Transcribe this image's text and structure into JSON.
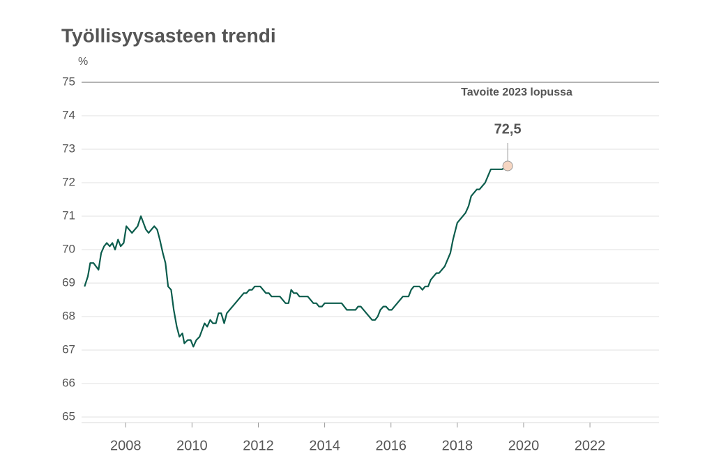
{
  "chart_data": {
    "type": "line",
    "title": "Työllisyysasteen trendi",
    "y_label": "%",
    "xlim": [
      2006.67,
      2024.08
    ],
    "xticks": [
      2008,
      2010,
      2012,
      2014,
      2016,
      2018,
      2020,
      2022
    ],
    "ylim": [
      65,
      75
    ],
    "yticks": [
      65,
      66,
      67,
      68,
      69,
      70,
      71,
      72,
      73,
      74,
      75
    ],
    "grid": true,
    "target": {
      "value": 75,
      "label": "Tavoite 2023 lopussa",
      "color": "#888888"
    },
    "marker": {
      "x": 2019.52,
      "value": 72.5,
      "label": "72,5",
      "color": "#f6d6c2"
    },
    "series": [
      {
        "name": "Työllisyysasteen trendi",
        "color": "#0b5c4c",
        "x": [
          2006.76,
          2006.86,
          2006.93,
          2007.03,
          2007.18,
          2007.26,
          2007.35,
          2007.43,
          2007.52,
          2007.6,
          2007.68,
          2007.77,
          2007.85,
          2007.94,
          2008.02,
          2008.19,
          2008.36,
          2008.46,
          2008.61,
          2008.69,
          2008.86,
          2008.95,
          2009.03,
          2009.12,
          2009.2,
          2009.28,
          2009.37,
          2009.45,
          2009.54,
          2009.62,
          2009.71,
          2009.77,
          2009.87,
          2009.96,
          2010.04,
          2010.13,
          2010.23,
          2010.38,
          2010.46,
          2010.55,
          2010.63,
          2010.72,
          2010.8,
          2010.88,
          2010.97,
          2011.05,
          2011.56,
          2011.64,
          2011.73,
          2011.81,
          2011.89,
          2012.06,
          2012.23,
          2012.32,
          2012.4,
          2012.65,
          2012.82,
          2012.91,
          2012.99,
          2013.07,
          2013.16,
          2013.24,
          2013.49,
          2013.66,
          2013.75,
          2013.83,
          2013.92,
          2014.0,
          2014.51,
          2014.67,
          2014.93,
          2015.01,
          2015.09,
          2015.43,
          2015.52,
          2015.6,
          2015.68,
          2015.77,
          2015.85,
          2015.94,
          2016.02,
          2016.36,
          2016.53,
          2016.61,
          2016.69,
          2016.86,
          2016.95,
          2017.03,
          2017.12,
          2017.2,
          2017.37,
          2017.45,
          2017.62,
          2017.79,
          2017.87,
          2018.0,
          2018.25,
          2018.34,
          2018.42,
          2018.59,
          2018.67,
          2018.84,
          2019.01,
          2019.35,
          2019.52
        ],
        "values": [
          68.9,
          69.2,
          69.6,
          69.6,
          69.4,
          69.9,
          70.1,
          70.2,
          70.1,
          70.2,
          70.0,
          70.3,
          70.1,
          70.2,
          70.7,
          70.5,
          70.7,
          71.0,
          70.6,
          70.5,
          70.7,
          70.6,
          70.3,
          69.9,
          69.6,
          68.9,
          68.8,
          68.2,
          67.7,
          67.4,
          67.5,
          67.2,
          67.3,
          67.3,
          67.1,
          67.3,
          67.4,
          67.8,
          67.7,
          67.9,
          67.8,
          67.8,
          68.1,
          68.1,
          67.8,
          68.1,
          68.7,
          68.7,
          68.8,
          68.8,
          68.9,
          68.9,
          68.7,
          68.7,
          68.6,
          68.6,
          68.4,
          68.4,
          68.8,
          68.7,
          68.7,
          68.6,
          68.6,
          68.4,
          68.4,
          68.3,
          68.3,
          68.4,
          68.4,
          68.2,
          68.2,
          68.3,
          68.3,
          67.9,
          67.9,
          68.0,
          68.2,
          68.3,
          68.3,
          68.2,
          68.2,
          68.6,
          68.6,
          68.8,
          68.9,
          68.9,
          68.8,
          68.9,
          68.9,
          69.1,
          69.3,
          69.3,
          69.5,
          69.9,
          70.3,
          70.8,
          71.1,
          71.3,
          71.6,
          71.8,
          71.8,
          72.0,
          72.4,
          72.4,
          72.5
        ]
      }
    ]
  }
}
